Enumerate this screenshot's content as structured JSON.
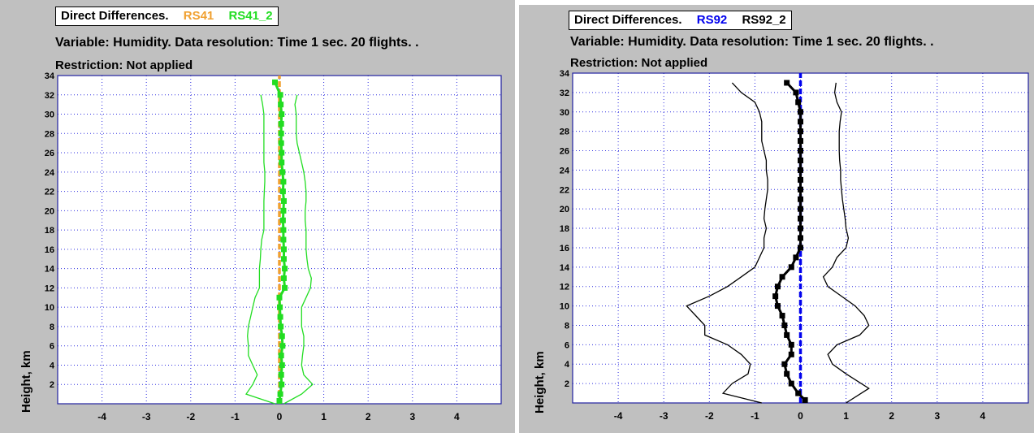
{
  "chart_data": [
    {
      "type": "line",
      "legend_title": "Direct Differences.",
      "legend": [
        {
          "name": "RS41",
          "color": "#f0a030"
        },
        {
          "name": "RS41_2",
          "color": "#22dd22"
        }
      ],
      "subtitle": "Variable: Humidity. Data resolution: Time 1 sec. 20 flights. .",
      "restriction": "Restriction: Not applied",
      "ylabel": "Height, km",
      "xlim": [
        -5,
        5
      ],
      "ylim": [
        0,
        34
      ],
      "xticks": [
        -4,
        -3,
        -2,
        -1,
        0,
        1,
        2,
        3,
        4
      ],
      "yticks": [
        2,
        4,
        6,
        8,
        10,
        12,
        14,
        16,
        18,
        20,
        22,
        24,
        26,
        28,
        30,
        32,
        34
      ],
      "grid": true,
      "series": [
        {
          "role": "reference",
          "color": "#f0a030",
          "style": "dashed",
          "points": [
            [
              0,
              0
            ],
            [
              0,
              34
            ]
          ]
        },
        {
          "role": "mean",
          "color": "#22dd22",
          "style": "markers",
          "points": [
            [
              0,
              0.3
            ],
            [
              0.02,
              1
            ],
            [
              0.05,
              2
            ],
            [
              0.04,
              3
            ],
            [
              0.06,
              4
            ],
            [
              0.04,
              5
            ],
            [
              0.07,
              6
            ],
            [
              0.06,
              7
            ],
            [
              0.03,
              8
            ],
            [
              0.02,
              9
            ],
            [
              0.01,
              10
            ],
            [
              0.0,
              11
            ],
            [
              0.12,
              12
            ],
            [
              0.1,
              13
            ],
            [
              0.12,
              14
            ],
            [
              0.1,
              15
            ],
            [
              0.1,
              16
            ],
            [
              0.09,
              17
            ],
            [
              0.09,
              18
            ],
            [
              0.08,
              19
            ],
            [
              0.09,
              20
            ],
            [
              0.1,
              21
            ],
            [
              0.08,
              22
            ],
            [
              0.09,
              23
            ],
            [
              0.07,
              24
            ],
            [
              0.05,
              25
            ],
            [
              0.05,
              26
            ],
            [
              0.04,
              27
            ],
            [
              0.04,
              28
            ],
            [
              0.04,
              29
            ],
            [
              0.05,
              30
            ],
            [
              0.03,
              31
            ],
            [
              0.02,
              32
            ],
            [
              -0.1,
              33.3
            ]
          ]
        },
        {
          "role": "lower",
          "color": "#22dd22",
          "style": "thin",
          "points": [
            [
              -0.1,
              0
            ],
            [
              -0.75,
              1
            ],
            [
              -0.6,
              2
            ],
            [
              -0.5,
              3
            ],
            [
              -0.6,
              4
            ],
            [
              -0.7,
              5
            ],
            [
              -0.7,
              6
            ],
            [
              -0.72,
              7
            ],
            [
              -0.7,
              8
            ],
            [
              -0.65,
              9
            ],
            [
              -0.6,
              10
            ],
            [
              -0.55,
              11
            ],
            [
              -0.45,
              12
            ],
            [
              -0.45,
              13
            ],
            [
              -0.45,
              14
            ],
            [
              -0.43,
              15
            ],
            [
              -0.42,
              16
            ],
            [
              -0.4,
              17
            ],
            [
              -0.35,
              18
            ],
            [
              -0.35,
              19
            ],
            [
              -0.35,
              20
            ],
            [
              -0.35,
              21
            ],
            [
              -0.34,
              22
            ],
            [
              -0.33,
              23
            ],
            [
              -0.33,
              24
            ],
            [
              -0.35,
              25
            ],
            [
              -0.35,
              26
            ],
            [
              -0.35,
              27
            ],
            [
              -0.35,
              28
            ],
            [
              -0.35,
              29
            ],
            [
              -0.35,
              30
            ],
            [
              -0.38,
              31
            ],
            [
              -0.42,
              32
            ]
          ]
        },
        {
          "role": "upper",
          "color": "#22dd22",
          "style": "thin",
          "points": [
            [
              0.1,
              0
            ],
            [
              0.5,
              1
            ],
            [
              0.75,
              2
            ],
            [
              0.55,
              3
            ],
            [
              0.5,
              4
            ],
            [
              0.52,
              5
            ],
            [
              0.55,
              6
            ],
            [
              0.55,
              7
            ],
            [
              0.5,
              8
            ],
            [
              0.5,
              9
            ],
            [
              0.5,
              10
            ],
            [
              0.6,
              11
            ],
            [
              0.7,
              12
            ],
            [
              0.72,
              13
            ],
            [
              0.65,
              14
            ],
            [
              0.62,
              15
            ],
            [
              0.6,
              16
            ],
            [
              0.6,
              17
            ],
            [
              0.6,
              18
            ],
            [
              0.58,
              19
            ],
            [
              0.58,
              20
            ],
            [
              0.6,
              21
            ],
            [
              0.6,
              22
            ],
            [
              0.58,
              23
            ],
            [
              0.55,
              24
            ],
            [
              0.5,
              25
            ],
            [
              0.45,
              26
            ],
            [
              0.4,
              27
            ],
            [
              0.38,
              28
            ],
            [
              0.38,
              29
            ],
            [
              0.38,
              30
            ],
            [
              0.35,
              31
            ],
            [
              0.4,
              32
            ]
          ]
        }
      ]
    },
    {
      "type": "line",
      "legend_title": "Direct Differences.",
      "legend": [
        {
          "name": "RS92",
          "color": "#0000ee"
        },
        {
          "name": "RS92_2",
          "color": "#000000"
        }
      ],
      "subtitle": "Variable: Humidity. Data resolution: Time 1 sec. 20 flights. .",
      "restriction": "Restriction: Not applied",
      "ylabel": "Height, km",
      "xlim": [
        -5,
        5
      ],
      "ylim": [
        0,
        34
      ],
      "xticks": [
        -4,
        -3,
        -2,
        -1,
        0,
        1,
        2,
        3,
        4
      ],
      "yticks": [
        2,
        4,
        6,
        8,
        10,
        12,
        14,
        16,
        18,
        20,
        22,
        24,
        26,
        28,
        30,
        32,
        34
      ],
      "grid": true,
      "series": [
        {
          "role": "reference",
          "color": "#0000ee",
          "style": "dashed",
          "points": [
            [
              0,
              0
            ],
            [
              0,
              34
            ]
          ]
        },
        {
          "role": "mean",
          "color": "#000000",
          "style": "markers",
          "points": [
            [
              0.1,
              0.3
            ],
            [
              -0.05,
              1
            ],
            [
              -0.2,
              2
            ],
            [
              -0.3,
              3
            ],
            [
              -0.35,
              4
            ],
            [
              -0.2,
              5
            ],
            [
              -0.2,
              6
            ],
            [
              -0.3,
              7
            ],
            [
              -0.35,
              8
            ],
            [
              -0.4,
              9
            ],
            [
              -0.5,
              10
            ],
            [
              -0.55,
              11
            ],
            [
              -0.5,
              12
            ],
            [
              -0.4,
              13
            ],
            [
              -0.2,
              14
            ],
            [
              -0.1,
              15
            ],
            [
              0,
              16
            ],
            [
              0,
              17
            ],
            [
              0,
              18
            ],
            [
              0,
              19
            ],
            [
              0,
              20
            ],
            [
              0,
              21
            ],
            [
              0,
              22
            ],
            [
              0,
              23
            ],
            [
              0,
              24
            ],
            [
              0,
              25
            ],
            [
              0,
              26
            ],
            [
              0,
              27
            ],
            [
              0,
              28
            ],
            [
              0,
              29
            ],
            [
              0,
              30
            ],
            [
              -0.05,
              31
            ],
            [
              -0.1,
              32
            ],
            [
              -0.3,
              33
            ]
          ]
        },
        {
          "role": "lower",
          "color": "#000000",
          "style": "thin",
          "points": [
            [
              -0.85,
              0
            ],
            [
              -1.7,
              1
            ],
            [
              -1.5,
              2
            ],
            [
              -1.15,
              3
            ],
            [
              -1.1,
              4
            ],
            [
              -1.3,
              5
            ],
            [
              -1.6,
              6
            ],
            [
              -2.1,
              7
            ],
            [
              -2.1,
              8
            ],
            [
              -2.3,
              9
            ],
            [
              -2.5,
              10
            ],
            [
              -2.0,
              11
            ],
            [
              -1.6,
              12
            ],
            [
              -1.3,
              13
            ],
            [
              -1.0,
              14
            ],
            [
              -0.9,
              15
            ],
            [
              -0.8,
              16
            ],
            [
              -0.8,
              17
            ],
            [
              -0.75,
              18
            ],
            [
              -0.8,
              19
            ],
            [
              -0.78,
              20
            ],
            [
              -0.75,
              21
            ],
            [
              -0.72,
              22
            ],
            [
              -0.72,
              23
            ],
            [
              -0.75,
              24
            ],
            [
              -0.75,
              25
            ],
            [
              -0.8,
              26
            ],
            [
              -0.85,
              27
            ],
            [
              -0.85,
              28
            ],
            [
              -0.85,
              29
            ],
            [
              -0.9,
              30
            ],
            [
              -1.0,
              31
            ],
            [
              -1.3,
              32
            ],
            [
              -1.5,
              33
            ]
          ]
        },
        {
          "role": "upper",
          "color": "#000000",
          "style": "thin",
          "points": [
            [
              1.0,
              0
            ],
            [
              1.5,
              1.5
            ],
            [
              1.0,
              3
            ],
            [
              0.7,
              4
            ],
            [
              0.6,
              5
            ],
            [
              0.8,
              6
            ],
            [
              1.3,
              7
            ],
            [
              1.5,
              8
            ],
            [
              1.4,
              9
            ],
            [
              1.2,
              10
            ],
            [
              0.9,
              11
            ],
            [
              0.6,
              12
            ],
            [
              0.5,
              13
            ],
            [
              0.7,
              14
            ],
            [
              0.8,
              15
            ],
            [
              1.0,
              16
            ],
            [
              1.05,
              17
            ],
            [
              1.0,
              18
            ],
            [
              0.98,
              19
            ],
            [
              0.95,
              20
            ],
            [
              0.92,
              21
            ],
            [
              0.9,
              22
            ],
            [
              0.88,
              23
            ],
            [
              0.88,
              24
            ],
            [
              0.86,
              25
            ],
            [
              0.85,
              26
            ],
            [
              0.85,
              27
            ],
            [
              0.85,
              28
            ],
            [
              0.87,
              29
            ],
            [
              0.9,
              30
            ],
            [
              0.8,
              31
            ],
            [
              0.75,
              32
            ],
            [
              0.78,
              33
            ]
          ]
        }
      ]
    }
  ]
}
